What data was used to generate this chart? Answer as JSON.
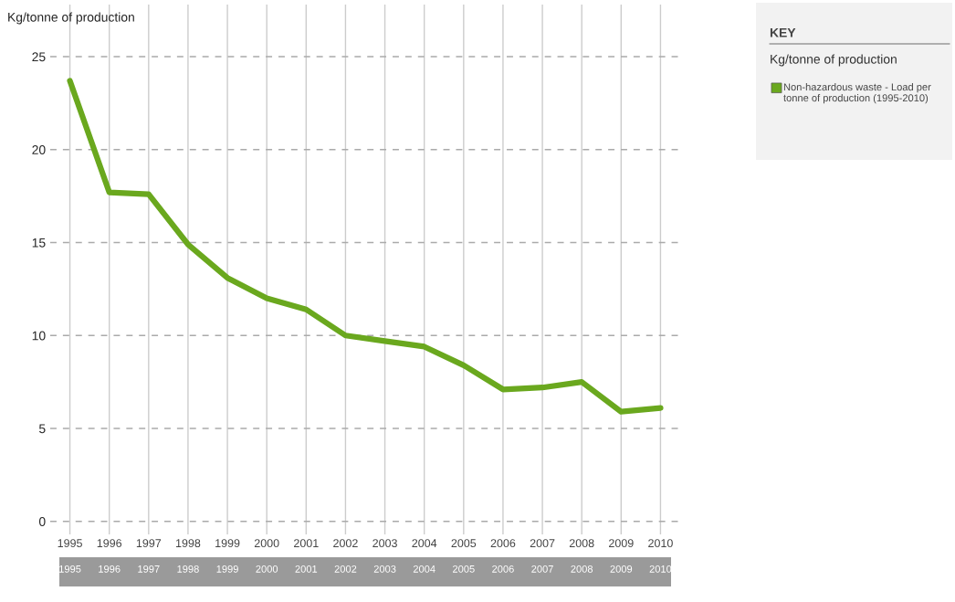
{
  "chart_data": {
    "type": "line",
    "ylabel": "Kg/tonne of production",
    "categories": [
      "1995",
      "1996",
      "1997",
      "1998",
      "1999",
      "2000",
      "2001",
      "2002",
      "2003",
      "2004",
      "2005",
      "2006",
      "2007",
      "2008",
      "2009",
      "2010"
    ],
    "series": [
      {
        "name": "Non-hazardous waste - Load per tonne of production (1995-2010)",
        "color": "#6aa81e",
        "values": [
          23.7,
          17.7,
          17.6,
          14.9,
          13.1,
          12.0,
          11.4,
          10.0,
          9.7,
          9.4,
          8.4,
          7.1,
          7.2,
          7.5,
          5.9,
          6.1
        ]
      }
    ],
    "ylim": [
      -0.7,
      27.8
    ],
    "yticks": [
      0,
      5,
      10,
      15,
      20,
      25
    ],
    "grid": true,
    "legend": "right",
    "legend_title": "Kg/tonne of production",
    "annotations": [
      "KEY"
    ],
    "marker": "none",
    "line_style": "solid"
  }
}
